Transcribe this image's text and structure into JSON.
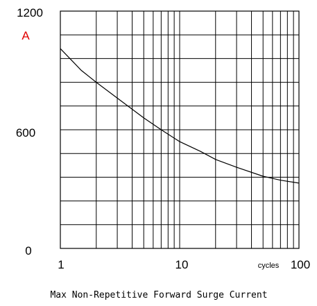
{
  "chart_data": {
    "type": "line",
    "title": "",
    "caption": "Max Non-Repetitive Forward Surge Current",
    "xlabel": "cycles",
    "ylabel": "A",
    "x_scale": "log",
    "xlim": [
      1,
      100
    ],
    "ylim": [
      0,
      1200
    ],
    "x_tick_labels": [
      "1",
      "10",
      "100"
    ],
    "y_tick_labels": [
      "0",
      "600",
      "1200"
    ],
    "grid": true,
    "colors": {
      "line": "#000000",
      "grid": "#000000",
      "unit_label": "#e00000"
    },
    "series": [
      {
        "x": [
          1,
          1.5,
          2,
          3,
          5,
          7,
          10,
          15,
          20,
          30,
          50,
          70,
          100
        ],
        "y": [
          1010,
          900,
          840,
          760,
          660,
          600,
          540,
          490,
          450,
          410,
          365,
          345,
          330
        ]
      }
    ]
  }
}
